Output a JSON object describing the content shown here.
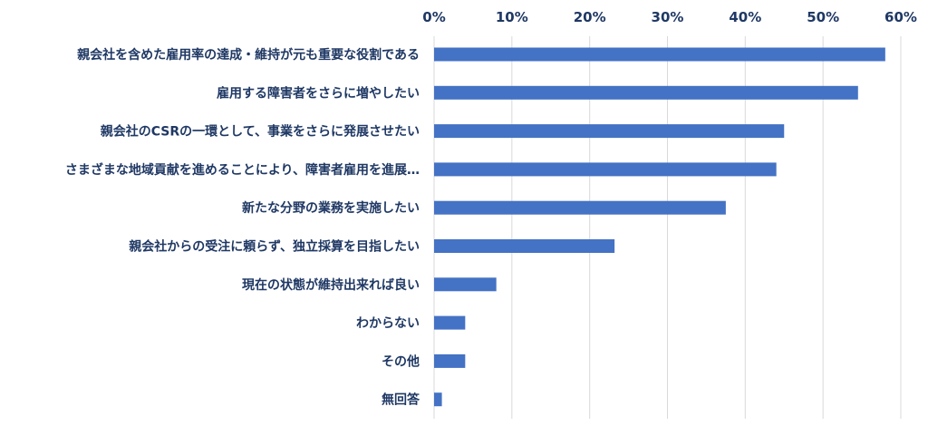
{
  "chart_data": {
    "type": "bar",
    "orientation": "horizontal",
    "categories": [
      "親会社を含めた雇用率の達成・維持が元も重要な役割である",
      "雇用する障害者をさらに増やしたい",
      "親会社のCSRの一環として、事業をさらに発展させたい",
      "さまざまな地域貢献を進めることにより、障害者雇用を進展…",
      "新たな分野の業務を実施したい",
      "親会社からの受注に頼らず、独立採算を目指したい",
      "現在の状態が維持出来れば良い",
      "わからない",
      "その他",
      "無回答"
    ],
    "values": [
      58,
      54.5,
      45,
      44,
      37.5,
      23.2,
      8,
      4,
      4,
      1
    ],
    "x_ticks": [
      "0%",
      "10%",
      "20%",
      "30%",
      "40%",
      "50%",
      "60%"
    ],
    "xlim": [
      0,
      60
    ],
    "grid": true,
    "legend": "none",
    "bar_color": "#4472c4"
  }
}
